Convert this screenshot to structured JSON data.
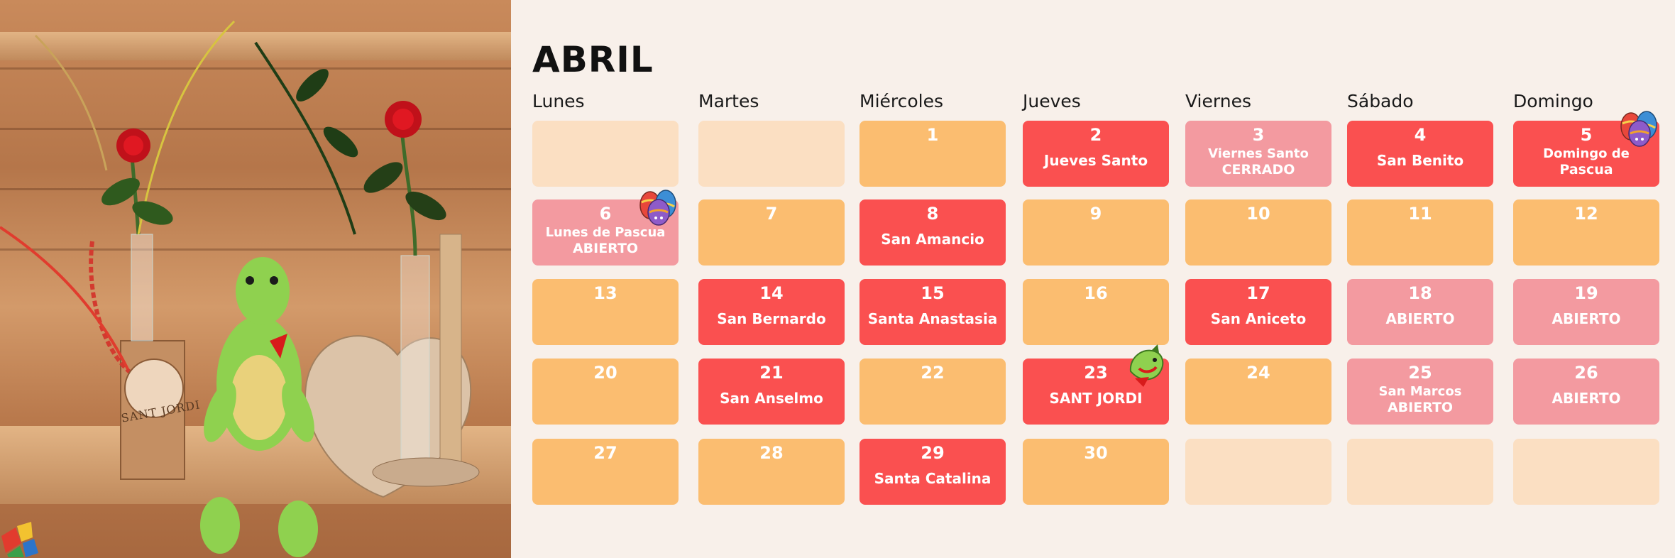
{
  "month": "ABRIL",
  "days": [
    "Lunes",
    "Martes",
    "Miércoles",
    "Jueves",
    "Viernes",
    "Sábado",
    "Domingo"
  ],
  "photo": {
    "badge_text": "SANT JORDI"
  },
  "cells": [
    {
      "num": "",
      "lines": [],
      "style": "empty"
    },
    {
      "num": "",
      "lines": [],
      "style": "empty"
    },
    {
      "num": "1",
      "lines": [],
      "style": "orange"
    },
    {
      "num": "2",
      "lines": [
        "Jueves Santo"
      ],
      "style": "red"
    },
    {
      "num": "3",
      "lines": [
        "Viernes Santo",
        "CERRADO"
      ],
      "style": "pink"
    },
    {
      "num": "4",
      "lines": [
        "San Benito"
      ],
      "style": "red"
    },
    {
      "num": "5",
      "lines": [
        "Domingo de",
        "Pascua"
      ],
      "style": "red",
      "icon": "easter-eggs-icon"
    },
    {
      "num": "6",
      "lines": [
        "Lunes de Pascua",
        "ABIERTO"
      ],
      "style": "pink",
      "icon": "easter-eggs-icon"
    },
    {
      "num": "7",
      "lines": [],
      "style": "orange"
    },
    {
      "num": "8",
      "lines": [
        "San Amancio"
      ],
      "style": "red"
    },
    {
      "num": "9",
      "lines": [],
      "style": "orange"
    },
    {
      "num": "10",
      "lines": [],
      "style": "orange"
    },
    {
      "num": "11",
      "lines": [],
      "style": "orange"
    },
    {
      "num": "12",
      "lines": [],
      "style": "orange"
    },
    {
      "num": "13",
      "lines": [],
      "style": "orange"
    },
    {
      "num": "14",
      "lines": [
        "San Bernardo"
      ],
      "style": "red"
    },
    {
      "num": "15",
      "lines": [
        "Santa Anastasia"
      ],
      "style": "red"
    },
    {
      "num": "16",
      "lines": [],
      "style": "orange"
    },
    {
      "num": "17",
      "lines": [
        "San Aniceto"
      ],
      "style": "red"
    },
    {
      "num": "18",
      "lines": [
        "ABIERTO"
      ],
      "style": "pink"
    },
    {
      "num": "19",
      "lines": [
        "ABIERTO"
      ],
      "style": "pink"
    },
    {
      "num": "20",
      "lines": [],
      "style": "orange"
    },
    {
      "num": "21",
      "lines": [
        "San Anselmo"
      ],
      "style": "red"
    },
    {
      "num": "22",
      "lines": [],
      "style": "orange"
    },
    {
      "num": "23",
      "lines": [
        "SANT JORDI"
      ],
      "style": "red",
      "icon": "dragon-icon"
    },
    {
      "num": "24",
      "lines": [],
      "style": "orange"
    },
    {
      "num": "25",
      "lines": [
        "San Marcos",
        "ABIERTO"
      ],
      "style": "pink"
    },
    {
      "num": "26",
      "lines": [
        "ABIERTO"
      ],
      "style": "pink"
    },
    {
      "num": "27",
      "lines": [],
      "style": "orange"
    },
    {
      "num": "28",
      "lines": [],
      "style": "orange"
    },
    {
      "num": "29",
      "lines": [
        "Santa Catalina"
      ],
      "style": "red"
    },
    {
      "num": "30",
      "lines": [],
      "style": "orange"
    },
    {
      "num": "",
      "lines": [],
      "style": "empty"
    },
    {
      "num": "",
      "lines": [],
      "style": "empty"
    },
    {
      "num": "",
      "lines": [],
      "style": "empty"
    }
  ],
  "colors": {
    "background": "#f8f0ea",
    "empty": "#fbdfc2",
    "orange": "#fbbd70",
    "red": "#fa5050",
    "pink": "#f39aa0"
  }
}
